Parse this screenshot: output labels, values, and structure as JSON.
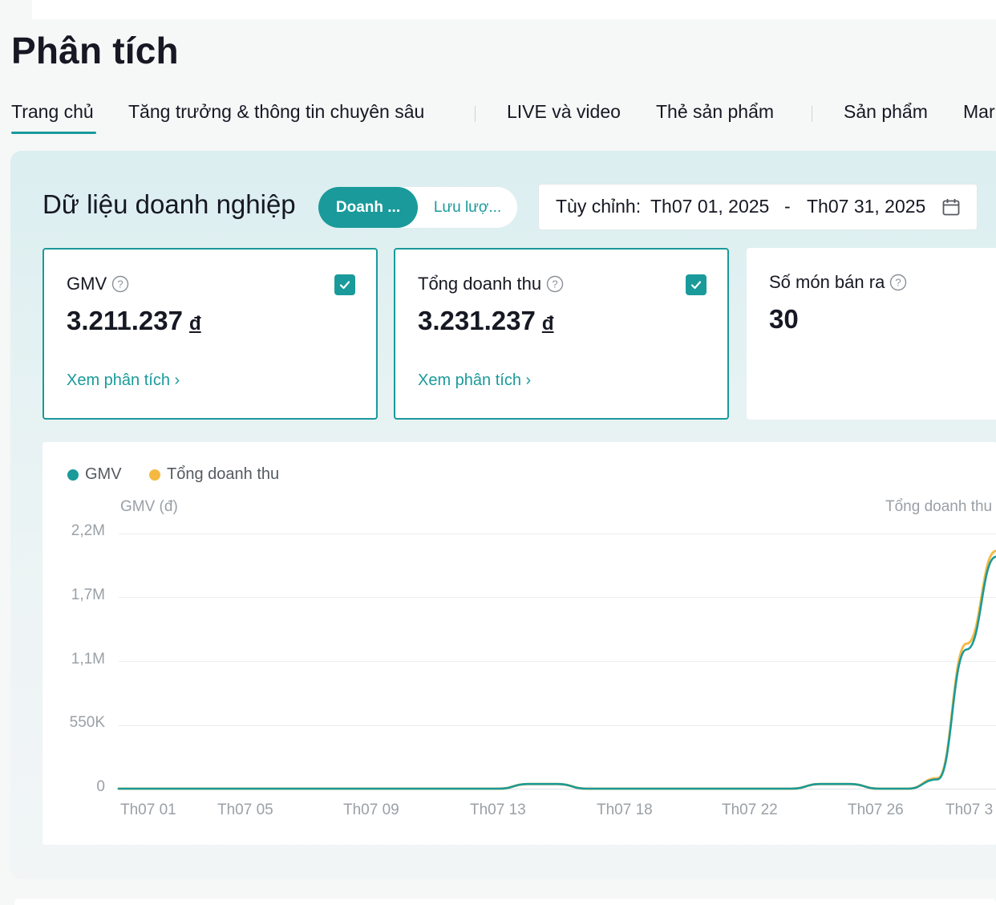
{
  "page": {
    "title": "Phân tích"
  },
  "tabs": [
    {
      "label": "Trang chủ",
      "active": true
    },
    {
      "label": "Tăng trưởng & thông tin chuyên sâu"
    },
    {
      "label": "LIVE và video"
    },
    {
      "label": "Thẻ sản phẩm"
    },
    {
      "label": "Sản phẩm"
    },
    {
      "label": "Mar"
    }
  ],
  "section": {
    "title": "Dữ liệu doanh nghiệp",
    "toggle_on": "Doanh ...",
    "toggle_off": "Lưu lượ..."
  },
  "date_range": {
    "label": "Tùy chỉnh:",
    "start": "Th07 01, 2025",
    "separator": "-",
    "end": "Th07 31, 2025",
    "icon": "calendar-icon"
  },
  "metrics": [
    {
      "label": "GMV",
      "value": "3.211.237",
      "currency": "đ",
      "link": "Xem phân tích ›",
      "checked": true
    },
    {
      "label": "Tổng doanh thu",
      "value": "3.231.237",
      "currency": "đ",
      "link": "Xem phân tích ›",
      "checked": true
    },
    {
      "label": "Số món bán ra",
      "value": "30",
      "checked": false
    }
  ],
  "colors": {
    "accent": "#1a9a9a",
    "gmv": "#1a9a9a",
    "revenue": "#f5b942"
  },
  "chart_data": {
    "type": "line",
    "legend": [
      "GMV",
      "Tổng doanh thu"
    ],
    "y_axis_left_title": "GMV (đ)",
    "y_axis_right_title": "Tổng doanh thu",
    "y_ticks": [
      "2,2M",
      "1,7M",
      "1,1M",
      "550K",
      "0"
    ],
    "x_ticks": [
      "Th07 01",
      "Th07 05",
      "Th07 09",
      "Th07 13",
      "Th07 18",
      "Th07 22",
      "Th07 26",
      "Th07 3"
    ],
    "ylim": [
      0,
      2200000
    ],
    "x": [
      1,
      2,
      3,
      4,
      5,
      6,
      7,
      8,
      9,
      10,
      11,
      12,
      13,
      14,
      15,
      16,
      17,
      18,
      19,
      20,
      21,
      22,
      23,
      24,
      25,
      26,
      27,
      28,
      29,
      30,
      31
    ],
    "series": [
      {
        "name": "GMV",
        "values": [
          0,
          0,
          0,
          0,
          0,
          0,
          0,
          0,
          0,
          0,
          0,
          0,
          0,
          0,
          40000,
          40000,
          0,
          0,
          0,
          0,
          0,
          0,
          0,
          0,
          40000,
          40000,
          0,
          0,
          80000,
          1200000,
          2000000
        ]
      },
      {
        "name": "Tổng doanh thu",
        "values": [
          0,
          0,
          0,
          0,
          0,
          0,
          0,
          0,
          0,
          0,
          0,
          0,
          0,
          0,
          40000,
          40000,
          0,
          0,
          0,
          0,
          0,
          0,
          0,
          0,
          40000,
          40000,
          0,
          0,
          90000,
          1250000,
          2050000
        ]
      }
    ],
    "grid": true,
    "legend_position": "top-left"
  }
}
